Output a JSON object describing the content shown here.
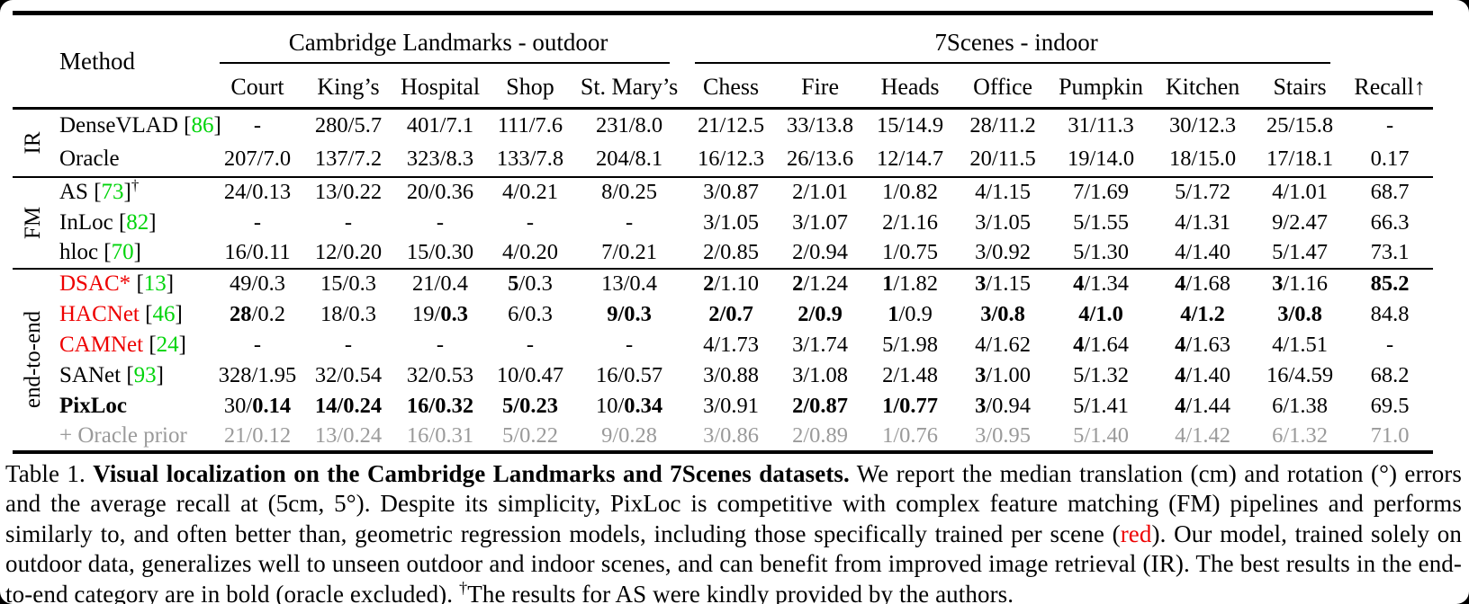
{
  "colors": {
    "ref_green": "#00d40a",
    "method_red": "#ee0000",
    "muted_gray": "#9a9a9a",
    "rule_black": "#000000",
    "page_bg": "#ffffff"
  },
  "table": {
    "col_header_left": "Method",
    "span_headers": [
      "Cambridge Landmarks - outdoor",
      "7Scenes - indoor"
    ],
    "columns": [
      "Court",
      "King’s",
      "Hospital",
      "Shop",
      "St. Mary’s",
      "Chess",
      "Fire",
      "Heads",
      "Office",
      "Pumpkin",
      "Kitchen",
      "Stairs",
      "Recall↑"
    ],
    "groups": [
      {
        "label": "IR",
        "rows": [
          {
            "method": "DenseVLAD",
            "ref": "86",
            "cells": [
              "-",
              "280/5.7",
              "401/7.1",
              "111/7.6",
              "231/8.0",
              "21/12.5",
              "33/13.8",
              "15/14.9",
              "28/11.2",
              "31/11.3",
              "30/12.3",
              "25/15.8",
              "-"
            ]
          },
          {
            "method": "Oracle",
            "cells": [
              "207/7.0",
              "137/7.2",
              "323/8.3",
              "133/7.8",
              "204/8.1",
              "16/12.3",
              "26/13.6",
              "12/14.7",
              "20/11.5",
              "19/14.0",
              "18/15.0",
              "17/18.1",
              "0.17"
            ]
          }
        ]
      },
      {
        "label": "FM",
        "rows": [
          {
            "method": "AS",
            "ref": "73",
            "dagger": true,
            "cells": [
              "24/0.13",
              "13/0.22",
              "20/0.36",
              "4/0.21",
              "8/0.25",
              "3/0.87",
              "2/1.01",
              "1/0.82",
              "4/1.15",
              "7/1.69",
              "5/1.72",
              "4/1.01",
              "68.7"
            ]
          },
          {
            "method": "InLoc",
            "ref": "82",
            "cells": [
              "-",
              "-",
              "-",
              "-",
              "-",
              "3/1.05",
              "3/1.07",
              "2/1.16",
              "3/1.05",
              "5/1.55",
              "4/1.31",
              "9/2.47",
              "66.3"
            ]
          },
          {
            "method": "hloc",
            "ref": "70",
            "cells": [
              "16/0.11",
              "12/0.20",
              "15/0.30",
              "4/0.20",
              "7/0.21",
              "2/0.85",
              "2/0.94",
              "1/0.75",
              "3/0.92",
              "5/1.30",
              "4/1.40",
              "5/1.47",
              "73.1"
            ]
          }
        ]
      },
      {
        "label": "end-to-end",
        "rows": [
          {
            "method": "DSAC*",
            "ref": "13",
            "red": true,
            "cells": [
              "49/0.3",
              "15/0.3",
              "21/0.4",
              "**5**/0.3",
              "13/0.4",
              "**2**/1.10",
              "**2**/1.24",
              "**1**/1.82",
              "**3**/1.15",
              "**4**/1.34",
              "**4**/1.68",
              "**3**/1.16",
              "**85.2**"
            ]
          },
          {
            "method": "HACNet",
            "ref": "46",
            "red": true,
            "cells": [
              "**28**/0.2",
              "18/0.3",
              "19/**0.3**",
              "6/0.3",
              "**9/0.3**",
              "**2/0.7**",
              "**2/0.9**",
              "**1**/0.9",
              "**3/0.8**",
              "**4/1.0**",
              "**4/1.2**",
              "**3/0.8**",
              "84.8"
            ]
          },
          {
            "method": "CAMNet",
            "ref": "24",
            "red": true,
            "cells": [
              "-",
              "-",
              "-",
              "-",
              "-",
              "4/1.73",
              "3/1.74",
              "5/1.98",
              "4/1.62",
              "**4**/1.64",
              "**4**/1.63",
              "4/1.51",
              "-"
            ]
          },
          {
            "method": "SANet",
            "ref": "93",
            "cells": [
              "328/1.95",
              "32/0.54",
              "32/0.53",
              "10/0.47",
              "16/0.57",
              "3/0.88",
              "3/1.08",
              "2/1.48",
              "**3**/1.00",
              "5/1.32",
              "**4**/1.40",
              "16/4.59",
              "68.2"
            ]
          },
          {
            "method": "PixLoc",
            "bold": true,
            "cells": [
              "30/**0.14**",
              "**14/0.24**",
              "**16/0.32**",
              "**5/0.23**",
              "10/**0.34**",
              "3/0.91",
              "**2/0.87**",
              "**1/0.77**",
              "**3**/0.94",
              "5/1.41",
              "**4**/1.44",
              "6/1.38",
              "69.5"
            ]
          },
          {
            "method": "+ Oracle prior",
            "muted": true,
            "cells": [
              "21/0.12",
              "13/0.24",
              "16/0.31",
              "5/0.22",
              "9/0.28",
              "3/0.86",
              "2/0.89",
              "1/0.76",
              "3/0.95",
              "5/1.40",
              "4/1.42",
              "6/1.32",
              "71.0"
            ]
          }
        ]
      }
    ]
  },
  "caption": {
    "segments": [
      {
        "text": "Table 1. ",
        "style": "normal"
      },
      {
        "text": "Visual localization on the Cambridge Landmarks and 7Scenes datasets.",
        "style": "bold"
      },
      {
        "text": " We report the median translation (cm) and rotation (°) errors and the average recall at (5cm, 5°). Despite its simplicity, PixLoc is competitive with complex feature matching (FM) pipelines and performs similarly to, and often better than, geometric regression models, including those specifically trained per scene (",
        "style": "normal"
      },
      {
        "text": "red",
        "style": "red"
      },
      {
        "text": "). Our model, trained solely on outdoor data, generalizes well to unseen outdoor and indoor scenes, and can benefit from improved image retrieval (IR). The best results in the end-to-end category are in bold (oracle excluded). ",
        "style": "normal"
      },
      {
        "text": "†",
        "style": "sup"
      },
      {
        "text": "The results for AS were kindly provided by the authors.",
        "style": "normal"
      }
    ]
  }
}
